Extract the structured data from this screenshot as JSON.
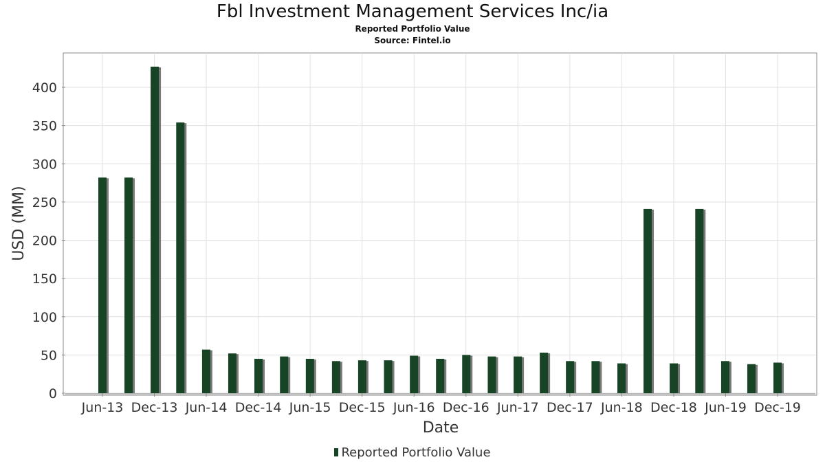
{
  "title": "Fbl Investment Management Services Inc/ia",
  "subtitle": "Reported Portfolio Value",
  "source": "Source: Fintel.io",
  "legend": {
    "label": "Reported Portfolio Value"
  },
  "colors": {
    "bar": "#174424",
    "shadow": "#7a7a7a",
    "grid": "#e0e0e0",
    "axis": "#888888"
  },
  "chart_data": {
    "type": "bar",
    "xlabel": "Date",
    "ylabel": "USD (MM)",
    "ylim": [
      0,
      430
    ],
    "yticks": [
      0,
      50,
      100,
      150,
      200,
      250,
      300,
      350,
      400
    ],
    "xticks": [
      "Jun-13",
      "Dec-13",
      "Jun-14",
      "Dec-14",
      "Jun-15",
      "Dec-15",
      "Jun-16",
      "Dec-16",
      "Jun-17",
      "Dec-17",
      "Jun-18",
      "Dec-18",
      "Jun-19",
      "Dec-19"
    ],
    "grid": true,
    "legend_position": "bottom",
    "series": [
      {
        "name": "Reported Portfolio Value",
        "x": [
          "2013-06-30",
          "2013-09-30",
          "2013-12-31",
          "2014-03-31",
          "2014-06-30",
          "2014-09-30",
          "2014-12-31",
          "2015-03-31",
          "2015-06-30",
          "2015-09-30",
          "2015-12-31",
          "2016-03-31",
          "2016-06-30",
          "2016-09-30",
          "2016-12-31",
          "2017-03-31",
          "2017-06-30",
          "2017-09-30",
          "2017-12-31",
          "2018-03-31",
          "2018-06-30",
          "2018-09-30",
          "2018-12-31",
          "2019-03-31",
          "2019-06-30",
          "2019-09-30",
          "2019-12-31"
        ],
        "values": [
          282,
          282,
          427,
          354,
          57,
          52,
          45,
          48,
          45,
          42,
          43,
          43,
          49,
          45,
          50,
          48,
          48,
          53,
          42,
          42,
          39,
          241,
          39,
          241,
          42,
          38,
          40
        ]
      }
    ]
  }
}
